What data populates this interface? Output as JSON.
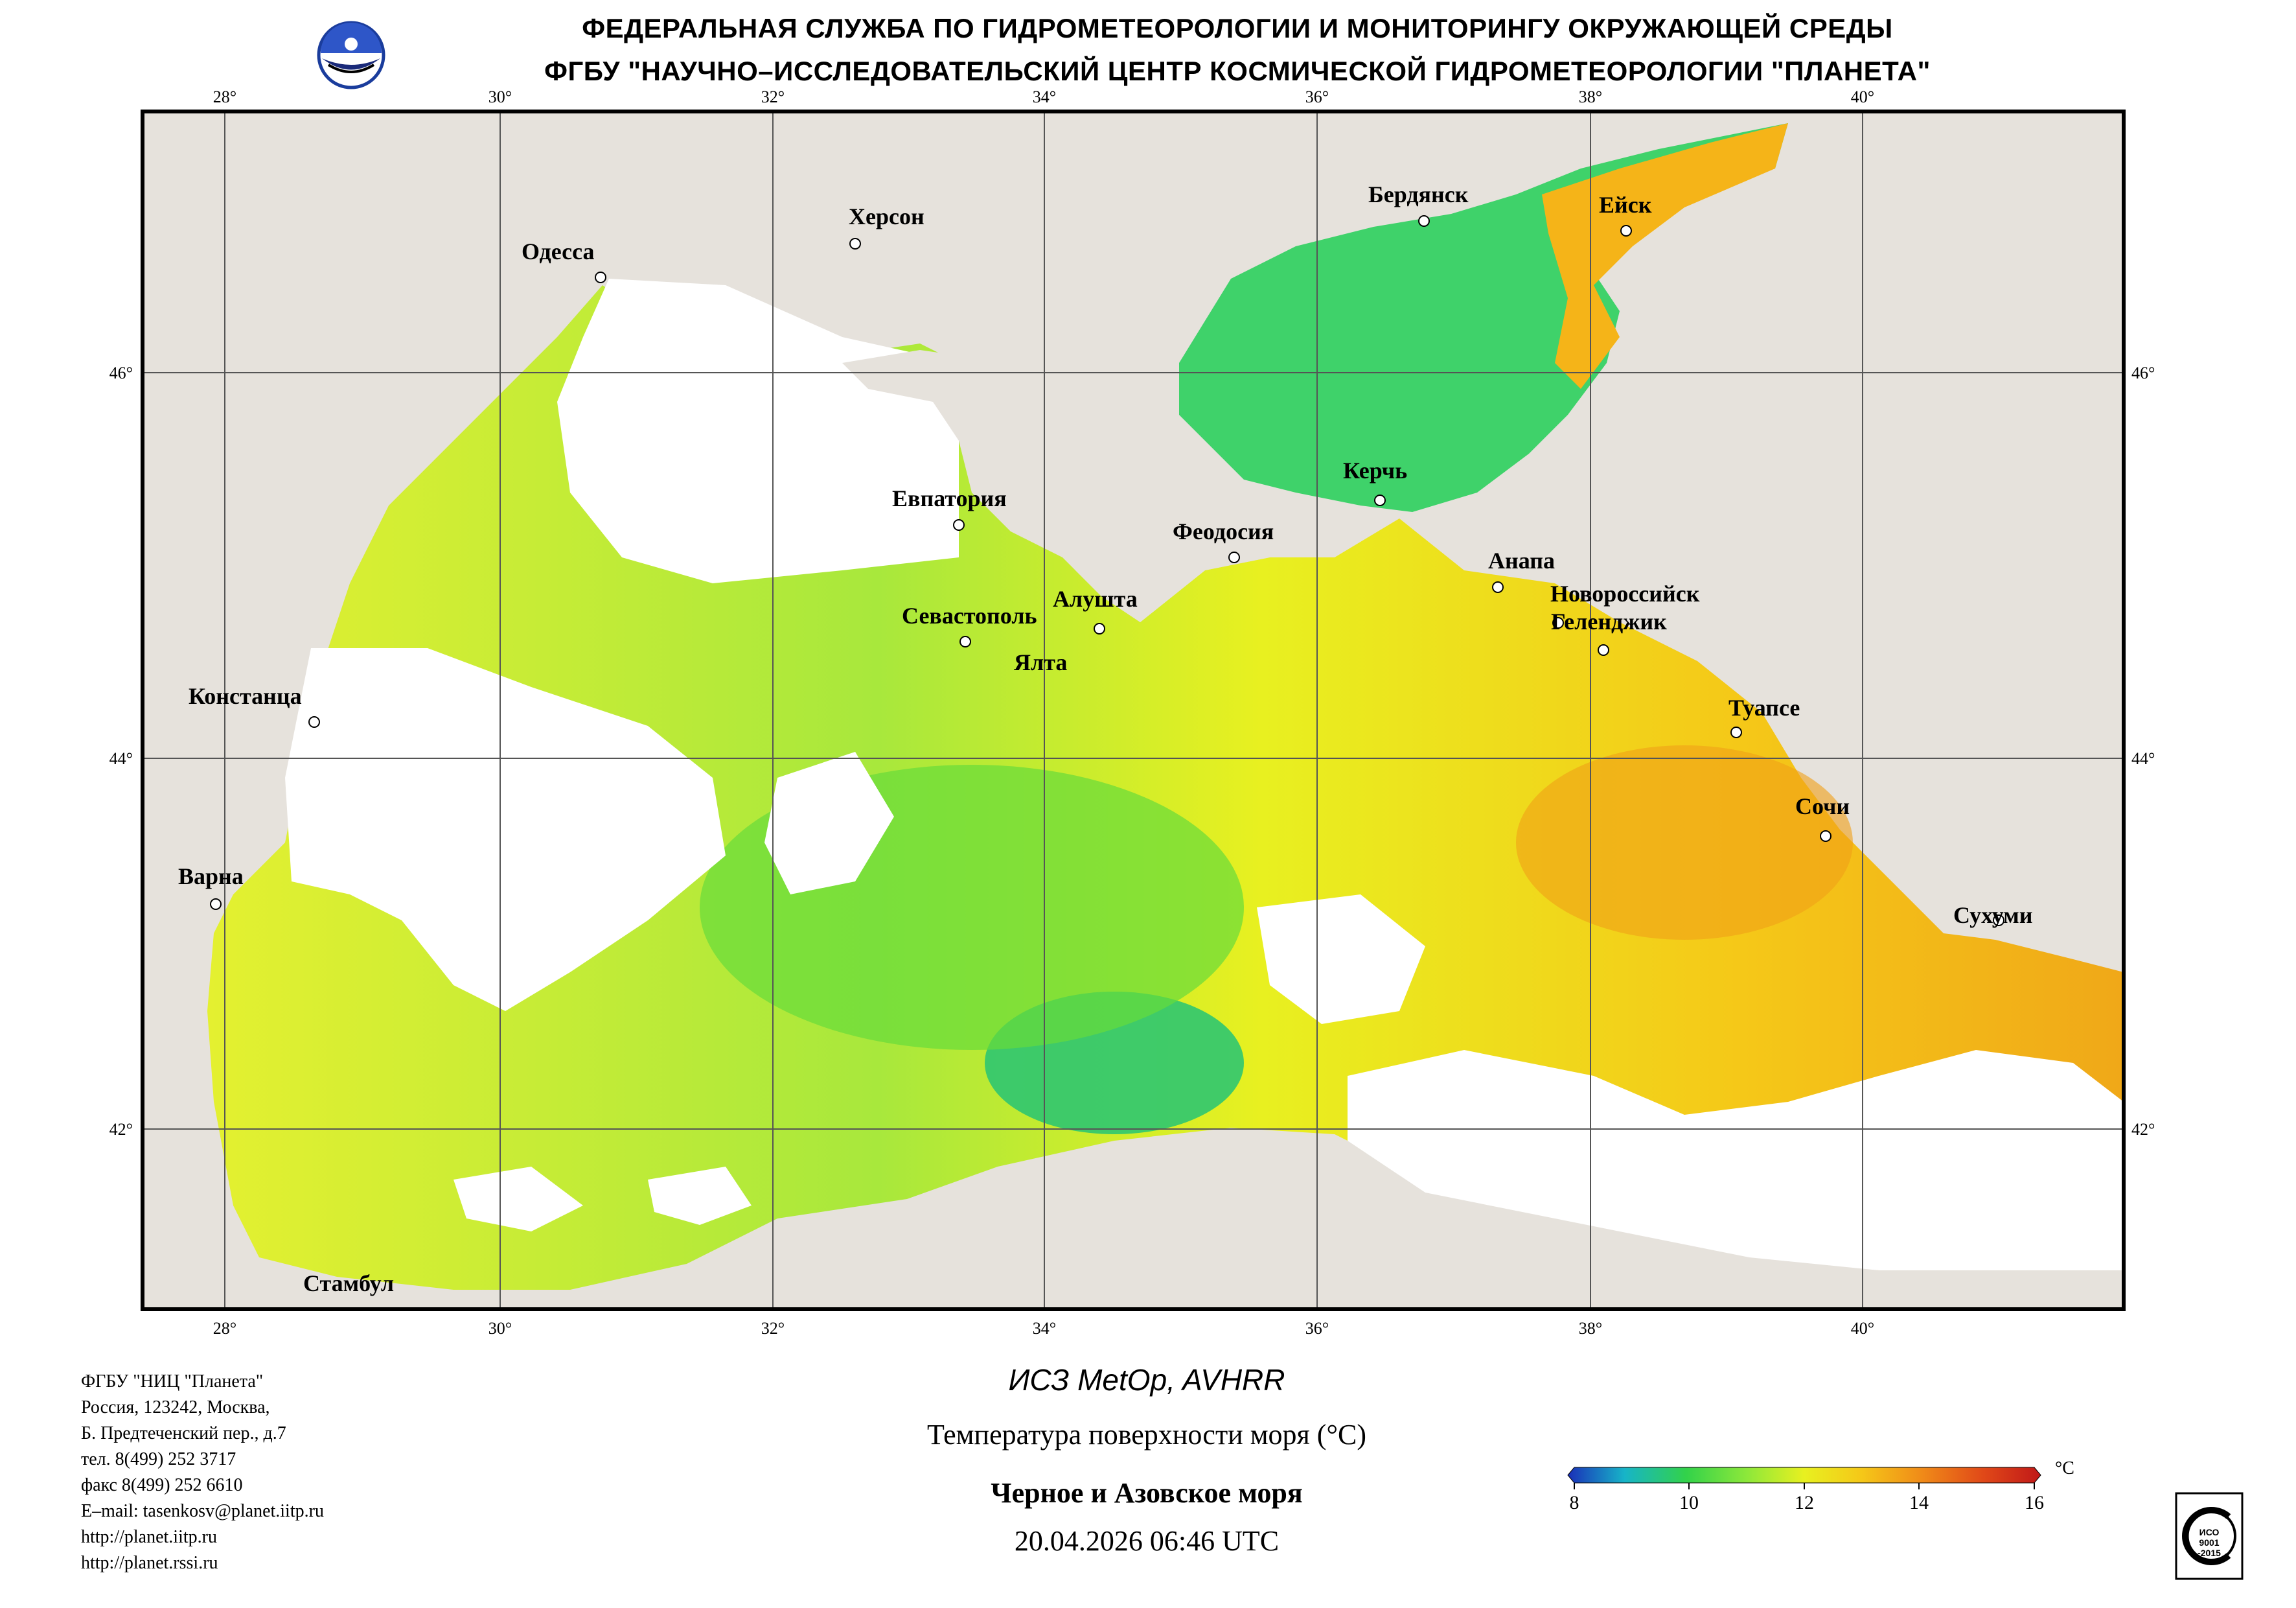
{
  "header": {
    "line1": "ФЕДЕРАЛЬНАЯ СЛУЖБА ПО ГИДРОМЕТЕОРОЛОГИИ И МОНИТОРИНГУ ОКРУЖАЮЩЕЙ СРЕДЫ",
    "line2": "ФГБУ \"НАУЧНО–ИССЛЕДОВАТЕЛЬСКИЙ ЦЕНТР КОСМИЧЕСКОЙ ГИДРОМЕТЕОРОЛОГИИ \"ПЛАНЕТА\""
  },
  "map": {
    "longitude_labels": [
      "28°",
      "30°",
      "32°",
      "34°",
      "36°",
      "38°",
      "40°"
    ],
    "latitude_labels": [
      "46°",
      "44°",
      "42°"
    ],
    "cities": [
      {
        "name": "Одесса"
      },
      {
        "name": "Херсон"
      },
      {
        "name": "Бердянск"
      },
      {
        "name": "Ейск"
      },
      {
        "name": "Керчь"
      },
      {
        "name": "Евпатория"
      },
      {
        "name": "Феодосия"
      },
      {
        "name": "Анапа"
      },
      {
        "name": "Новороссийск"
      },
      {
        "name": "Геленджик"
      },
      {
        "name": "Севастополь"
      },
      {
        "name": "Алушта"
      },
      {
        "name": "Ялта"
      },
      {
        "name": "Констанца"
      },
      {
        "name": "Туапсе"
      },
      {
        "name": "Сочи"
      },
      {
        "name": "Варна"
      },
      {
        "name": "Сухуми"
      },
      {
        "name": "Стамбул"
      }
    ],
    "colors": {
      "land": "#e6e2dc",
      "cloud": "#ffffff",
      "grid": "#555555",
      "border": "#4a4a4a"
    }
  },
  "footer": {
    "org_lines": [
      "ФГБУ \"НИЦ \"Планета\"",
      "Россия, 123242, Москва,",
      "Б. Предтеченский пер., д.7",
      "тел. 8(499) 252 3717",
      "факс 8(499) 252 6610",
      "E–mail: tasenkosv@planet.iitp.ru",
      "http://planet.iitp.ru",
      "http://planet.rssi.ru"
    ],
    "satellite": "ИСЗ MetOp, AVHRR",
    "product": "Температура поверхности моря (°С)",
    "region": "Черное и Азовское моря",
    "datetime": "20.04.2026 06:46 UTC"
  },
  "colorbar": {
    "unit": "°С",
    "ticks": [
      "8",
      "10",
      "12",
      "14",
      "16"
    ],
    "range": [
      8,
      16
    ],
    "colors": [
      "#1a2fb8",
      "#17b4c8",
      "#32d24a",
      "#8ee83a",
      "#e8f020",
      "#f5c818",
      "#f08a18",
      "#e04818",
      "#c01818"
    ]
  },
  "badge": {
    "lines": [
      "ИСО",
      "9001",
      "-2015"
    ]
  }
}
